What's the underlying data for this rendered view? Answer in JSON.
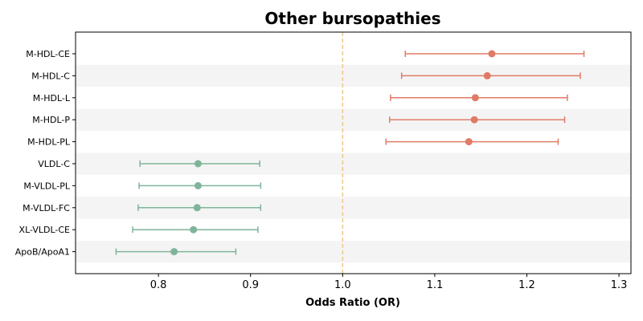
{
  "chart_data": {
    "type": "forest",
    "title": "Other bursopathies",
    "xlabel": "Odds Ratio (OR)",
    "ylabel": "",
    "xlim": [
      0.71,
      1.313
    ],
    "reference_line": 1.0,
    "xticks": [
      0.8,
      0.9,
      1.0,
      1.1,
      1.2,
      1.3
    ],
    "xtick_labels": [
      "0.8",
      "0.9",
      "1.0",
      "1.1",
      "1.2",
      "1.3"
    ],
    "colors": {
      "positive": "#e07b65",
      "negative": "#7fb49a",
      "reference": "#f0c68c",
      "stripe": "#f4f4f4"
    },
    "rows": [
      {
        "label": "M-HDL-CE",
        "or": 1.162,
        "lower": 1.068,
        "upper": 1.262
      },
      {
        "label": "M-HDL-C",
        "or": 1.157,
        "lower": 1.064,
        "upper": 1.258
      },
      {
        "label": "M-HDL-L",
        "or": 1.144,
        "lower": 1.052,
        "upper": 1.244
      },
      {
        "label": "M-HDL-P",
        "or": 1.143,
        "lower": 1.051,
        "upper": 1.241
      },
      {
        "label": "M-HDL-PL",
        "or": 1.137,
        "lower": 1.047,
        "upper": 1.234
      },
      {
        "label": "VLDL-C",
        "or": 0.843,
        "lower": 0.78,
        "upper": 0.91
      },
      {
        "label": "M-VLDL-PL",
        "or": 0.843,
        "lower": 0.779,
        "upper": 0.911
      },
      {
        "label": "M-VLDL-FC",
        "or": 0.842,
        "lower": 0.778,
        "upper": 0.911
      },
      {
        "label": "XL-VLDL-CE",
        "or": 0.838,
        "lower": 0.772,
        "upper": 0.908
      },
      {
        "label": "ApoB/ApoA1",
        "or": 0.817,
        "lower": 0.754,
        "upper": 0.884
      }
    ]
  }
}
